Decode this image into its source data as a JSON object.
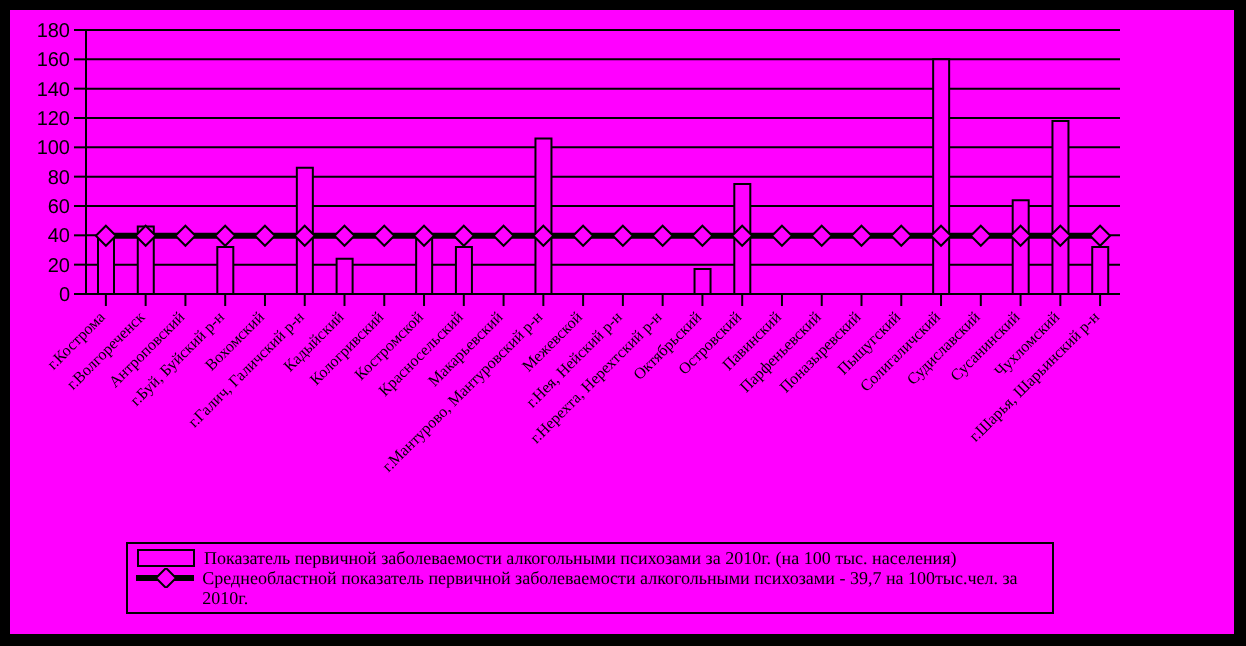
{
  "chart_data": {
    "type": "bar",
    "categories": [
      "г.Кострома",
      "г.Волгореченск",
      "Антроповский",
      "г.Буй, Буйский р-н",
      "Вохомский",
      "г.Галич, Галичский р-н",
      "Кадыйский",
      "Кологривский",
      "Костромской",
      "Красносельский",
      "Макарьевский",
      "г.Мантурово, Мантуровский р-н",
      "Межевской",
      "г.Нея, Нейский р-н",
      "г.Нерехта, Нерехтский р-н",
      "Октябрьский",
      "Островский",
      "Павинский",
      "Парфеньевский",
      "Поназыревский",
      "Пыщугский",
      "Солигаличский",
      "Судиславский",
      "Сусанинский",
      "Чухломский",
      "г.Шарья, Шарьинский р-н"
    ],
    "series": [
      {
        "name": "Показатель первичной заболеваемости алкогольными психозами за 2010г. (на 100 тыс. населения)",
        "color": "#ff00ff",
        "values": [
          38,
          46,
          null,
          32,
          null,
          86,
          24,
          null,
          38,
          32,
          null,
          106,
          null,
          null,
          null,
          17,
          75,
          null,
          null,
          null,
          null,
          160,
          null,
          64,
          118,
          32
        ]
      },
      {
        "name": "Среднеобластной показатель первичной заболеваемости алкогольными психозами - 39,7 на 100тыс.чел. за 2010г.",
        "type": "line",
        "color": "#000000",
        "marker": "diamond",
        "values": [
          39.7,
          39.7,
          39.7,
          39.7,
          39.7,
          39.7,
          39.7,
          39.7,
          39.7,
          39.7,
          39.7,
          39.7,
          39.7,
          39.7,
          39.7,
          39.7,
          39.7,
          39.7,
          39.7,
          39.7,
          39.7,
          39.7,
          39.7,
          39.7,
          39.7,
          39.7
        ]
      }
    ],
    "ylim": [
      0,
      180
    ],
    "yticks": [
      0,
      20,
      40,
      60,
      80,
      100,
      120,
      140,
      160,
      180
    ],
    "grid": "y",
    "legend": "bottom"
  }
}
